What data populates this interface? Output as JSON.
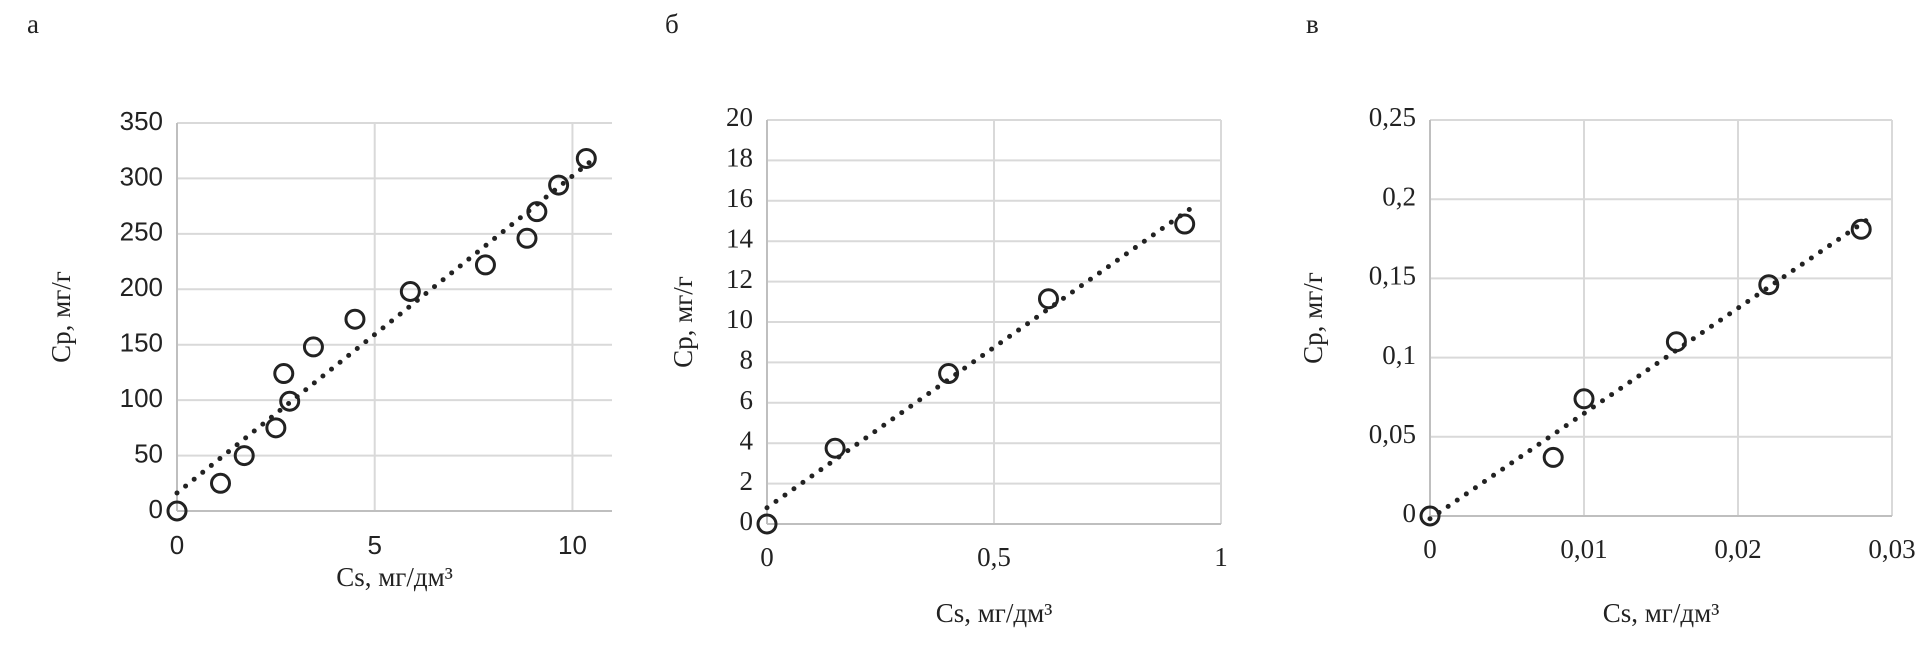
{
  "chart_data": [
    {
      "type": "scatter",
      "panel": "а",
      "x_label": "Cs, мг/дм³",
      "y_label": "Cp, мг/г",
      "x": [
        0,
        1.1,
        1.7,
        2.5,
        2.7,
        2.85,
        3.45,
        4.5,
        5.9,
        7.8,
        8.85,
        9.1,
        9.65,
        10.35
      ],
      "values": [
        0,
        25,
        50,
        75,
        124,
        99,
        148,
        173,
        198,
        222,
        246,
        270,
        294,
        318
      ],
      "color": "#222222",
      "trendline": true,
      "grid": true,
      "xlim": [
        0,
        11
      ],
      "xticks": [
        0,
        5,
        10
      ],
      "ylim": [
        0,
        350
      ],
      "yticks": [
        0,
        50,
        100,
        150,
        200,
        250,
        300,
        350
      ]
    },
    {
      "type": "scatter",
      "panel": "б",
      "x_label": "Cs, мг/дм³",
      "y_label": "Cp, мг/г",
      "x": [
        0,
        0.15,
        0.4,
        0.62,
        0.92
      ],
      "values": [
        0,
        3.75,
        7.45,
        11.15,
        14.85
      ],
      "color": "#222222",
      "trendline": true,
      "grid": true,
      "xlim": [
        0,
        1
      ],
      "xticks": [
        0,
        {
          "value": 0.5,
          "label": "0,5"
        },
        1
      ],
      "ylim": [
        0,
        20
      ],
      "yticks": [
        0,
        2,
        4,
        6,
        8,
        10,
        12,
        14,
        16,
        18,
        20
      ]
    },
    {
      "type": "scatter",
      "panel": "в",
      "x_label": "Cs, мг/дм³",
      "y_label": "Cp, мг/г",
      "x": [
        0,
        0.008,
        0.01,
        0.016,
        0.022,
        0.028
      ],
      "values": [
        0,
        0.037,
        0.074,
        0.11,
        0.146,
        0.181
      ],
      "color": "#222222",
      "trendline": true,
      "grid": true,
      "xlim": [
        0,
        0.03
      ],
      "xticks": [
        0,
        {
          "value": 0.01,
          "label": "0,01"
        },
        {
          "value": 0.02,
          "label": "0,02"
        },
        {
          "value": 0.03,
          "label": "0,03"
        }
      ],
      "ylim": [
        0,
        0.25
      ],
      "yticks": [
        0,
        {
          "value": 0.05,
          "label": "0,05"
        },
        {
          "value": 0.1,
          "label": "0,1"
        },
        {
          "value": 0.15,
          "label": "0,15"
        },
        {
          "value": 0.2,
          "label": "0,2"
        },
        {
          "value": 0.25,
          "label": "0,25"
        }
      ]
    }
  ]
}
